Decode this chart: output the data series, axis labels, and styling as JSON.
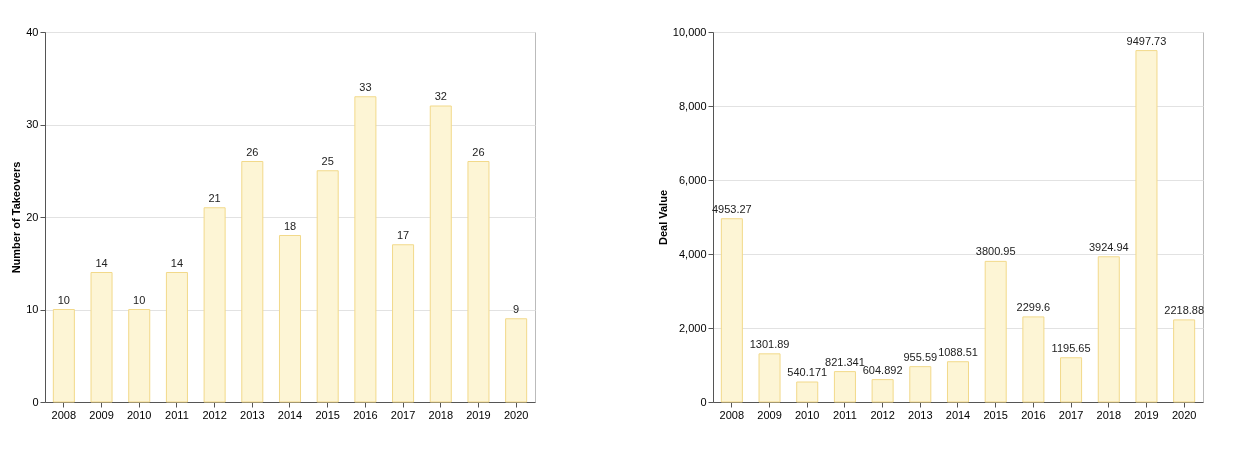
{
  "chart_data": [
    {
      "type": "bar",
      "ylabel": "Number of Takeovers",
      "categories": [
        "2008",
        "2009",
        "2010",
        "2011",
        "2012",
        "2013",
        "2014",
        "2015",
        "2016",
        "2017",
        "2018",
        "2019",
        "2020"
      ],
      "values": [
        10,
        14,
        10,
        14,
        21,
        26,
        18,
        25,
        33,
        17,
        32,
        26,
        9
      ],
      "color": "#fdf5d5",
      "ylim": [
        0,
        40
      ],
      "yticks": [
        0,
        10,
        20,
        30,
        40
      ],
      "grid": "y",
      "data_labels": true
    },
    {
      "type": "bar",
      "ylabel": "Deal Value",
      "categories": [
        "2008",
        "2009",
        "2010",
        "2011",
        "2012",
        "2013",
        "2014",
        "2015",
        "2016",
        "2017",
        "2018",
        "2019",
        "2020"
      ],
      "values": [
        4953.27,
        1301.89,
        540.171,
        821.341,
        604.892,
        955.59,
        1088.51,
        3800.95,
        2299.6,
        1195.65,
        3924.94,
        9497.73,
        2218.88
      ],
      "color": "#fdf5d5",
      "ylim": [
        0,
        10000
      ],
      "yticks": [
        0,
        {
          "value": 2000,
          "label": "2,000"
        },
        {
          "value": 4000,
          "label": "4,000"
        },
        {
          "value": 6000,
          "label": "6,000"
        },
        {
          "value": 8000,
          "label": "8,000"
        },
        {
          "value": 10000,
          "label": "10,000"
        }
      ],
      "grid": "y",
      "data_labels": true
    }
  ]
}
